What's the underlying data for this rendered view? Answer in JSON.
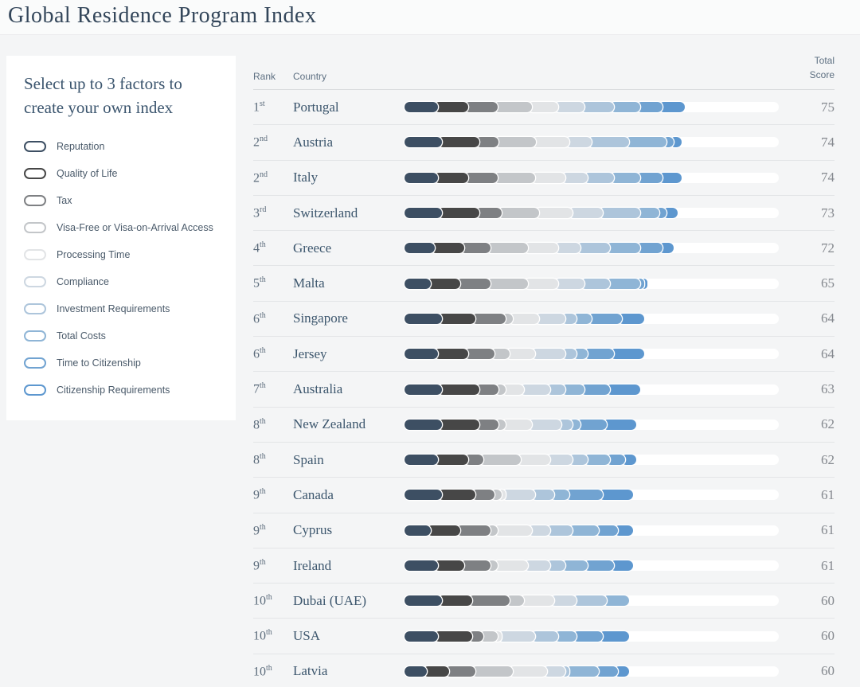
{
  "title": "Global Residence Program Index",
  "sidebar": {
    "heading": "Select up to 3 factors to create your own index",
    "factors": [
      {
        "label": "Reputation",
        "color": "#3d4f63"
      },
      {
        "label": "Quality of Life",
        "color": "#474747"
      },
      {
        "label": "Tax",
        "color": "#7e8083"
      },
      {
        "label": "Visa-Free or Visa-on-Arrival Access",
        "color": "#c3c6c9"
      },
      {
        "label": "Processing Time",
        "color": "#e2e4e6"
      },
      {
        "label": "Compliance",
        "color": "#cdd7e1"
      },
      {
        "label": "Investment Requirements",
        "color": "#adc5db"
      },
      {
        "label": "Total Costs",
        "color": "#8fb5d6"
      },
      {
        "label": "Time to Citizenship",
        "color": "#71a3d1"
      },
      {
        "label": "Citizenship Requirements",
        "color": "#5d97cf"
      }
    ]
  },
  "table": {
    "rank_header": "Rank",
    "country_header": "Country",
    "total_header_line1": "Total",
    "total_header_line2": "Score"
  },
  "chart_data": {
    "type": "bar",
    "stacked": true,
    "orientation": "horizontal",
    "max_total": 100,
    "track_color": "#ffffff",
    "segment_order": [
      "Reputation",
      "Quality of Life",
      "Tax",
      "Visa-Free or Visa-on-Arrival Access",
      "Processing Time",
      "Compliance",
      "Investment Requirements",
      "Total Costs",
      "Time to Citizenship",
      "Citizenship Requirements"
    ],
    "colors": [
      "#3d4f63",
      "#474747",
      "#7e8083",
      "#c3c6c9",
      "#e2e4e6",
      "#cdd7e1",
      "#adc5db",
      "#8fb5d6",
      "#71a3d1",
      "#5d97cf"
    ],
    "rows": [
      {
        "rank": "1",
        "ordinal": "st",
        "country": "Portugal",
        "total": 75,
        "segments": [
          9,
          8,
          8,
          9,
          7,
          7,
          8,
          7,
          6,
          6
        ]
      },
      {
        "rank": "2",
        "ordinal": "nd",
        "country": "Austria",
        "total": 74,
        "segments": [
          10,
          10,
          5,
          10,
          9,
          6,
          10,
          10,
          2,
          2
        ]
      },
      {
        "rank": "2",
        "ordinal": "nd",
        "country": "Italy",
        "total": 74,
        "segments": [
          9,
          8,
          8,
          10,
          8,
          6,
          7,
          7,
          6,
          5
        ]
      },
      {
        "rank": "3",
        "ordinal": "rd",
        "country": "Switzerland",
        "total": 73,
        "segments": [
          10,
          10,
          6,
          10,
          9,
          8,
          10,
          5,
          2,
          3
        ]
      },
      {
        "rank": "4",
        "ordinal": "th",
        "country": "Greece",
        "total": 72,
        "segments": [
          8,
          8,
          7,
          10,
          8,
          6,
          8,
          8,
          6,
          3
        ]
      },
      {
        "rank": "5",
        "ordinal": "th",
        "country": "Malta",
        "total": 65,
        "segments": [
          7,
          8,
          8,
          10,
          8,
          7,
          7,
          8,
          1,
          1
        ]
      },
      {
        "rank": "6",
        "ordinal": "th",
        "country": "Singapore",
        "total": 64,
        "segments": [
          10,
          9,
          8,
          2,
          7,
          7,
          3,
          4,
          8,
          6
        ]
      },
      {
        "rank": "6",
        "ordinal": "th",
        "country": "Jersey",
        "total": 64,
        "segments": [
          9,
          8,
          7,
          4,
          7,
          8,
          3,
          3,
          7,
          8
        ]
      },
      {
        "rank": "7",
        "ordinal": "th",
        "country": "Australia",
        "total": 63,
        "segments": [
          10,
          10,
          5,
          2,
          5,
          7,
          4,
          5,
          7,
          8
        ]
      },
      {
        "rank": "8",
        "ordinal": "th",
        "country": "New Zealand",
        "total": 62,
        "segments": [
          10,
          10,
          5,
          2,
          7,
          8,
          3,
          2,
          7,
          8
        ]
      },
      {
        "rank": "8",
        "ordinal": "th",
        "country": "Spain",
        "total": 62,
        "segments": [
          9,
          8,
          4,
          10,
          8,
          6,
          4,
          6,
          4,
          3
        ]
      },
      {
        "rank": "9",
        "ordinal": "th",
        "country": "Canada",
        "total": 61,
        "segments": [
          10,
          9,
          5,
          2,
          1,
          8,
          5,
          4,
          9,
          8
        ]
      },
      {
        "rank": "9",
        "ordinal": "th",
        "country": "Cyprus",
        "total": 61,
        "segments": [
          7,
          8,
          8,
          2,
          9,
          5,
          6,
          7,
          5,
          4
        ]
      },
      {
        "rank": "9",
        "ordinal": "th",
        "country": "Ireland",
        "total": 61,
        "segments": [
          9,
          7,
          7,
          2,
          8,
          6,
          4,
          6,
          7,
          5
        ]
      },
      {
        "rank": "10",
        "ordinal": "th",
        "country": "Dubai (UAE)",
        "total": 60,
        "segments": [
          10,
          8,
          10,
          4,
          8,
          6,
          8,
          6,
          0,
          0
        ]
      },
      {
        "rank": "10",
        "ordinal": "th",
        "country": "USA",
        "total": 60,
        "segments": [
          9,
          9,
          3,
          4,
          1,
          9,
          6,
          5,
          7,
          7
        ]
      },
      {
        "rank": "10",
        "ordinal": "th",
        "country": "Latvia",
        "total": 60,
        "segments": [
          6,
          6,
          7,
          10,
          9,
          5,
          1,
          8,
          5,
          3
        ]
      }
    ]
  }
}
